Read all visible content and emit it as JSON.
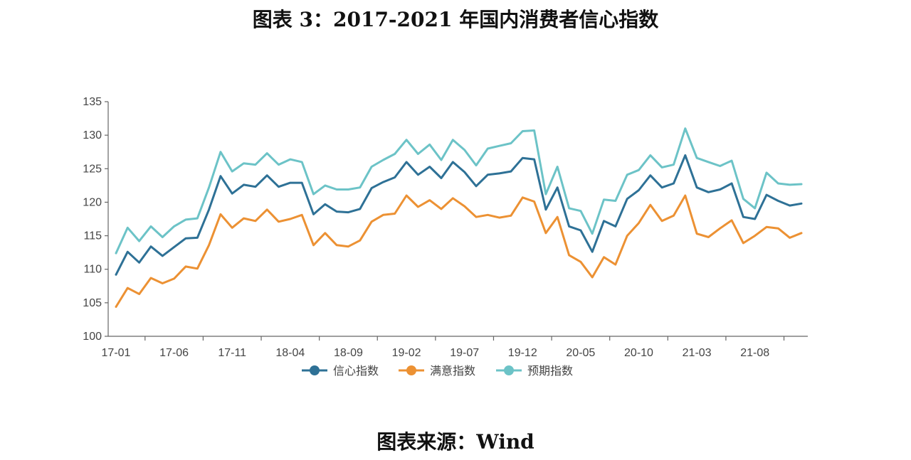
{
  "header": {
    "title": "图表 3：2017-2021 年国内消费者信心指数"
  },
  "footer": {
    "source": "图表来源：Wind"
  },
  "chart_data": {
    "type": "line",
    "title": "",
    "xlabel": "",
    "ylabel": "",
    "ylim": [
      100,
      135
    ],
    "y_ticks": [
      100,
      105,
      110,
      115,
      120,
      125,
      130,
      135
    ],
    "x_tick_labels": [
      "17-01",
      "17-06",
      "17-11",
      "18-04",
      "18-09",
      "19-02",
      "19-07",
      "19-12",
      "20-05",
      "20-10",
      "21-03",
      "21-08"
    ],
    "x_tick_every": 5,
    "grid": false,
    "legend_position": "bottom",
    "series": [
      {
        "name": "信心指数",
        "color": "#2e7196",
        "values": [
          109.2,
          112.6,
          111.0,
          113.4,
          112.0,
          113.3,
          114.6,
          114.7,
          118.9,
          123.9,
          121.3,
          122.6,
          122.3,
          124.0,
          122.3,
          122.9,
          122.9,
          118.2,
          119.7,
          118.6,
          118.5,
          119.0,
          122.1,
          123.0,
          123.7,
          126.0,
          124.1,
          125.3,
          123.6,
          126.0,
          124.5,
          122.4,
          124.1,
          124.3,
          124.6,
          126.6,
          126.4,
          118.9,
          122.2,
          116.4,
          115.8,
          112.6,
          117.2,
          116.4,
          120.5,
          121.8,
          124.0,
          122.2,
          122.8,
          127.0,
          122.2,
          121.5,
          121.9,
          122.8,
          117.8,
          117.5,
          121.1,
          120.2,
          119.5,
          119.8
        ]
      },
      {
        "name": "满意指数",
        "color": "#ec9133",
        "values": [
          104.4,
          107.2,
          106.3,
          108.7,
          107.9,
          108.6,
          110.4,
          110.1,
          113.6,
          118.2,
          116.2,
          117.6,
          117.2,
          118.9,
          117.1,
          117.5,
          118.1,
          113.6,
          115.4,
          113.6,
          113.4,
          114.3,
          117.1,
          118.1,
          118.3,
          121.0,
          119.3,
          120.3,
          119.0,
          120.6,
          119.4,
          117.8,
          118.1,
          117.7,
          118.0,
          120.7,
          120.1,
          115.4,
          117.8,
          112.1,
          111.1,
          108.8,
          111.8,
          110.7,
          115.0,
          116.9,
          119.6,
          117.2,
          118.0,
          121.0,
          115.3,
          114.8,
          116.1,
          117.3,
          113.9,
          115.0,
          116.3,
          116.1,
          114.7,
          115.4
        ]
      },
      {
        "name": "预期指数",
        "color": "#6cc3c7",
        "values": [
          112.4,
          116.2,
          114.2,
          116.4,
          114.8,
          116.4,
          117.4,
          117.6,
          122.2,
          127.5,
          124.6,
          125.8,
          125.6,
          127.3,
          125.6,
          126.4,
          126.0,
          121.2,
          122.5,
          121.9,
          121.9,
          122.2,
          125.3,
          126.3,
          127.2,
          129.3,
          127.2,
          128.6,
          126.3,
          129.3,
          127.8,
          125.5,
          128.0,
          128.4,
          128.8,
          130.6,
          130.7,
          121.2,
          125.3,
          119.1,
          118.7,
          115.3,
          120.4,
          120.2,
          124.1,
          124.8,
          127.0,
          125.2,
          125.6,
          131.0,
          126.6,
          126.0,
          125.4,
          126.2,
          120.5,
          119.1,
          124.4,
          122.8,
          122.6,
          122.7
        ]
      }
    ]
  }
}
